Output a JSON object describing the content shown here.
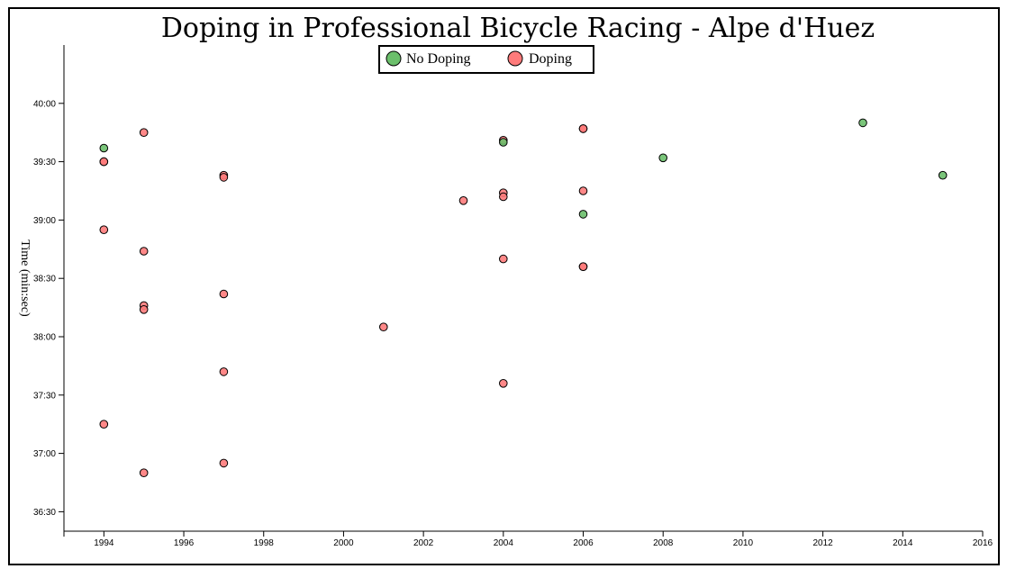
{
  "chart_data": {
    "type": "scatter",
    "title": "Doping in Professional Bicycle Racing - Alpe d'Huez",
    "xlabel": "",
    "ylabel": "Time (min:sec)",
    "xlim": [
      1993,
      2016
    ],
    "ylim_seconds": [
      2180,
      2430
    ],
    "x_ticks": [
      "1994",
      "1996",
      "1998",
      "2000",
      "2002",
      "2004",
      "2006",
      "2008",
      "2010",
      "2012",
      "2014",
      "2016"
    ],
    "y_ticks": [
      "40:00",
      "39:30",
      "39:00",
      "38:30",
      "38:00",
      "37:30",
      "37:00",
      "36:30"
    ],
    "y_axis_inverted": true,
    "legend": {
      "placement": "top-center",
      "entries": [
        "No Doping",
        "Doping"
      ]
    },
    "colors": {
      "no_doping": "#6bbf6b",
      "doping": "#ff7b7b",
      "stroke": "#000000"
    },
    "series": [
      {
        "name": "No Doping",
        "points": [
          {
            "x": 1994,
            "y": "39:37"
          },
          {
            "x": 2004,
            "y": "39:40"
          },
          {
            "x": 2006,
            "y": "39:03"
          },
          {
            "x": 2008,
            "y": "39:32"
          },
          {
            "x": 2013,
            "y": "39:50"
          },
          {
            "x": 2015,
            "y": "39:23"
          }
        ]
      },
      {
        "name": "Doping",
        "points": [
          {
            "x": 1994,
            "y": "39:30"
          },
          {
            "x": 1994,
            "y": "39:30"
          },
          {
            "x": 1994,
            "y": "38:55"
          },
          {
            "x": 1994,
            "y": "37:15"
          },
          {
            "x": 1995,
            "y": "39:45"
          },
          {
            "x": 1995,
            "y": "38:44"
          },
          {
            "x": 1995,
            "y": "38:16"
          },
          {
            "x": 1995,
            "y": "38:14"
          },
          {
            "x": 1995,
            "y": "36:50"
          },
          {
            "x": 1997,
            "y": "39:23"
          },
          {
            "x": 1997,
            "y": "39:22"
          },
          {
            "x": 1997,
            "y": "38:22"
          },
          {
            "x": 1997,
            "y": "37:42"
          },
          {
            "x": 1997,
            "y": "36:55"
          },
          {
            "x": 2001,
            "y": "38:05"
          },
          {
            "x": 2003,
            "y": "39:10"
          },
          {
            "x": 2004,
            "y": "39:41"
          },
          {
            "x": 2004,
            "y": "39:14"
          },
          {
            "x": 2004,
            "y": "39:12"
          },
          {
            "x": 2004,
            "y": "38:40"
          },
          {
            "x": 2004,
            "y": "37:36"
          },
          {
            "x": 2006,
            "y": "39:47"
          },
          {
            "x": 2006,
            "y": "39:47"
          },
          {
            "x": 2006,
            "y": "39:15"
          },
          {
            "x": 2006,
            "y": "38:36"
          },
          {
            "x": 2006,
            "y": "38:36"
          }
        ]
      }
    ]
  }
}
